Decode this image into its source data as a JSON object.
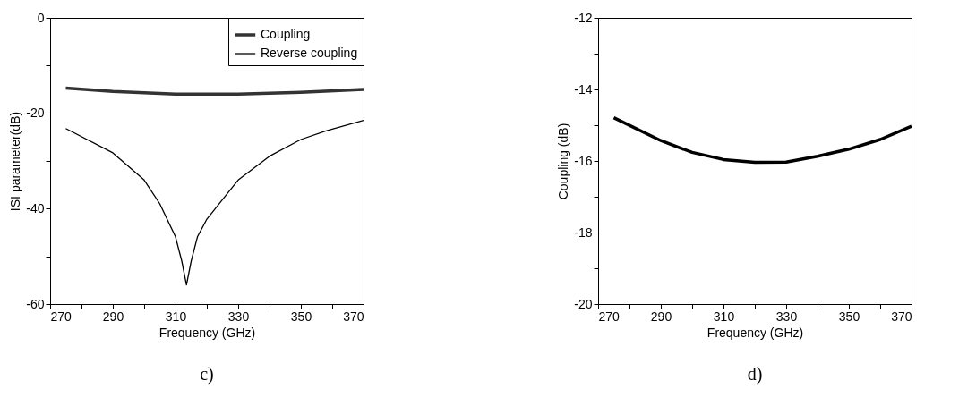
{
  "chart_data": [
    {
      "type": "line",
      "xlabel": "Frequency (GHz)",
      "ylabel": "ISI parameter(dB)",
      "annotations": [
        "c)"
      ],
      "legend": "top right",
      "grid": false,
      "marker": "none",
      "line_style": "solid",
      "xlim": [
        270,
        370
      ],
      "ylim": [
        -60,
        0
      ],
      "xticks": [
        270,
        {
          "value": 280,
          "label": null
        },
        290,
        {
          "value": 300,
          "label": null
        },
        310,
        {
          "value": 320,
          "label": null
        },
        330,
        {
          "value": 340,
          "label": null
        },
        350,
        {
          "value": 360,
          "label": null
        },
        370
      ],
      "yticks": [
        -60,
        {
          "value": -50,
          "label": null
        },
        -40,
        {
          "value": -30,
          "label": null
        },
        -20,
        {
          "value": -10,
          "label": null
        },
        0
      ],
      "series": [
        {
          "name": "Coupling",
          "color": "#333333",
          "x": [
            275,
            290,
            310,
            330,
            350,
            370
          ],
          "values": [
            -14.7,
            -15.4,
            -16.0,
            -16.0,
            -15.6,
            -15.0
          ]
        },
        {
          "name": "Reverse coupling",
          "color": "#000000",
          "x": [
            275,
            290,
            300,
            305,
            310,
            312,
            313.5,
            315,
            317,
            320,
            330,
            340,
            350,
            358,
            370
          ],
          "values": [
            -23.2,
            -28.3,
            -34,
            -39,
            -45.9,
            -51,
            -56,
            -51,
            -45.9,
            -42.2,
            -34,
            -29,
            -25.5,
            -23.7,
            -21.5
          ]
        }
      ]
    },
    {
      "type": "line",
      "xlabel": "Frequency (GHz)",
      "ylabel": "Coupling (dB)",
      "annotations": [
        "d)"
      ],
      "legend": false,
      "grid": false,
      "marker": "none",
      "line_style": "solid",
      "xlim": [
        270,
        370
      ],
      "ylim": [
        -20,
        -12
      ],
      "xticks": [
        270,
        {
          "value": 280,
          "label": null
        },
        290,
        {
          "value": 300,
          "label": null
        },
        310,
        {
          "value": 320,
          "label": null
        },
        330,
        {
          "value": 340,
          "label": null
        },
        350,
        {
          "value": 360,
          "label": null
        },
        370
      ],
      "yticks": [
        -20,
        {
          "value": -19,
          "label": null
        },
        -18,
        {
          "value": -17,
          "label": null
        },
        -16,
        {
          "value": -15,
          "label": null
        },
        -14,
        {
          "value": -13,
          "label": null
        },
        -12
      ],
      "series": [
        {
          "color": "#000000",
          "x": [
            275,
            290,
            300,
            310,
            320,
            330,
            340,
            350,
            360,
            370
          ],
          "values": [
            -14.79,
            -15.43,
            -15.76,
            -15.96,
            -16.04,
            -16.03,
            -15.87,
            -15.67,
            -15.4,
            -15.03
          ]
        }
      ]
    }
  ]
}
